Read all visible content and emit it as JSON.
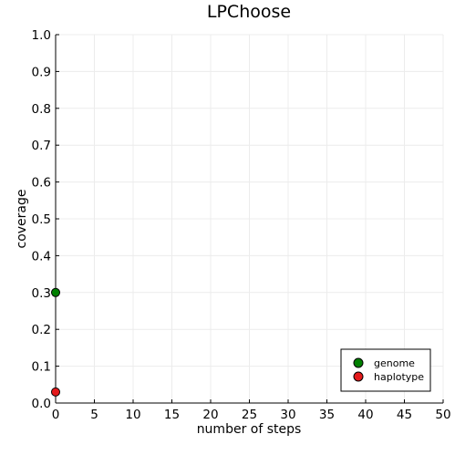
{
  "chart_data": {
    "type": "scatter",
    "title": "LPChoose",
    "xlabel": "number of steps",
    "ylabel": "coverage",
    "xlim": [
      0,
      50
    ],
    "ylim": [
      0,
      1.0
    ],
    "xticks": [
      "0",
      "5",
      "10",
      "15",
      "20",
      "25",
      "30",
      "35",
      "40",
      "45",
      "50"
    ],
    "yticks": [
      "0.0",
      "0.1",
      "0.2",
      "0.3",
      "0.4",
      "0.5",
      "0.6",
      "0.7",
      "0.8",
      "0.9",
      "1.0"
    ],
    "grid": true,
    "legend_position": "bottom-right",
    "series": [
      {
        "name": "genome",
        "color": "#008000",
        "x": [
          0
        ],
        "y": [
          0.3
        ]
      },
      {
        "name": "haplotype",
        "color": "#e41a1c",
        "x": [
          0
        ],
        "y": [
          0.03
        ]
      }
    ]
  }
}
